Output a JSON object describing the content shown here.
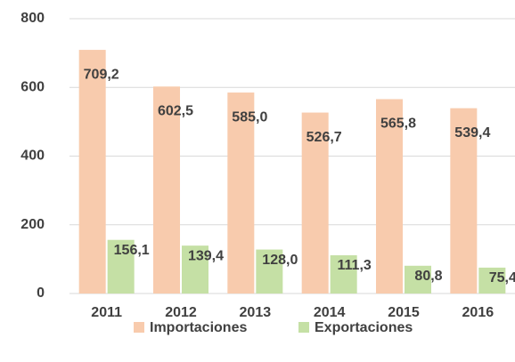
{
  "chart_data": {
    "type": "bar",
    "categories": [
      "2011",
      "2012",
      "2013",
      "2014",
      "2015",
      "2016"
    ],
    "series": [
      {
        "name": "Importaciones",
        "color": "#f8cbad",
        "values": [
          709.2,
          602.5,
          585.0,
          526.7,
          565.8,
          539.4
        ],
        "value_labels": [
          "709,2",
          "602,5",
          "585,0",
          "526,7",
          "565,8",
          "539,4"
        ]
      },
      {
        "name": "Exportaciones",
        "color": "#c5e0a5",
        "values": [
          156.1,
          139.4,
          128.0,
          111.3,
          80.8,
          75.4
        ],
        "value_labels": [
          "156,1",
          "139,4",
          "128,0",
          "111,3",
          "80,8",
          "75,4"
        ]
      }
    ],
    "ylim": [
      0,
      800
    ],
    "yticks": [
      0,
      200,
      400,
      600,
      800
    ],
    "grid": true,
    "legend": "bottom"
  }
}
